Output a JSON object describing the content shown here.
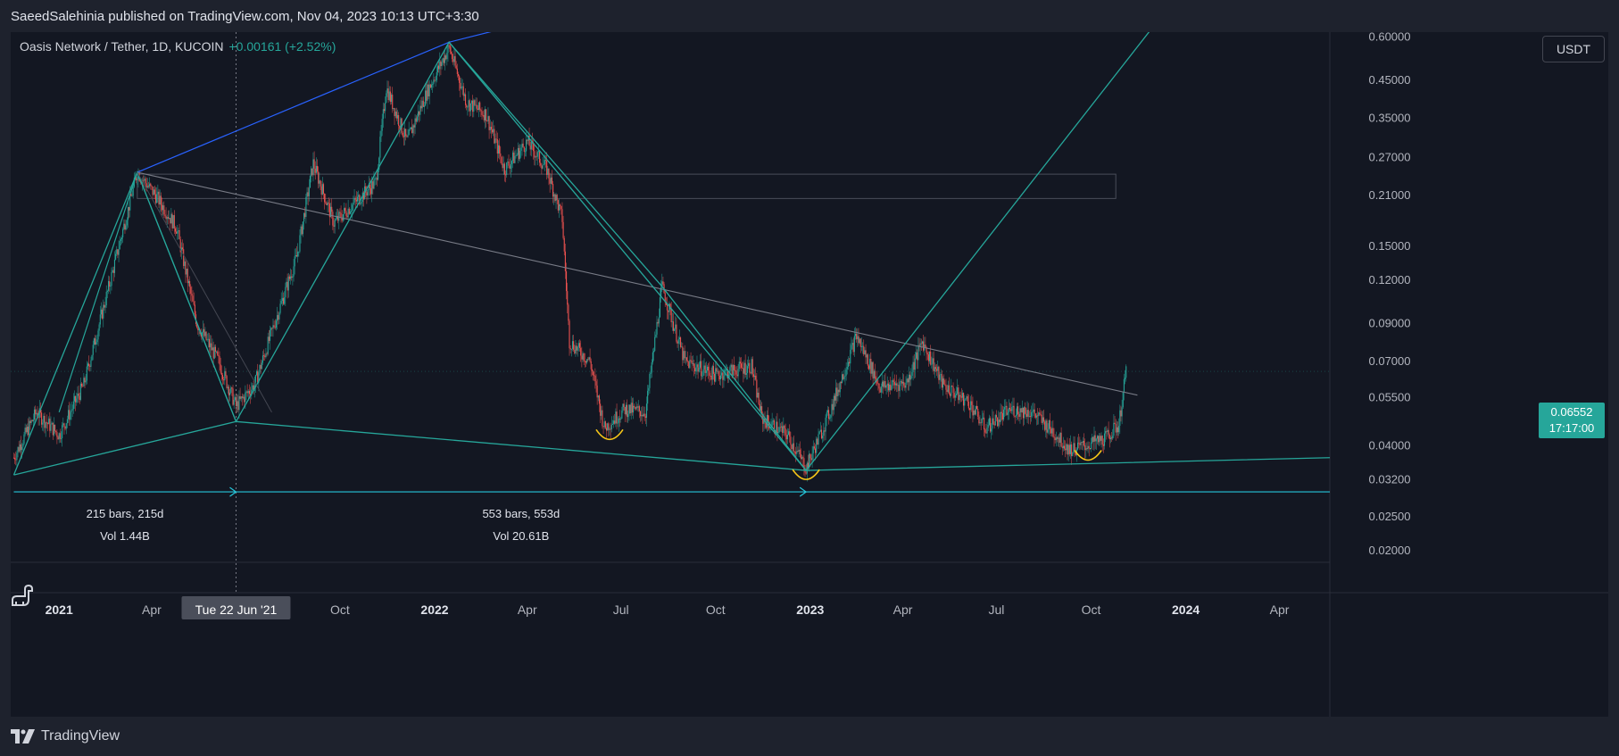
{
  "publisher": {
    "text": "SaeedSalehinia published on TradingView.com, Nov 04, 2023 10:13 UTC+3:30"
  },
  "legend": {
    "symbol": "Oasis Network / Tether, 1D, KUCOIN",
    "change": "+0.00161 (+2.52%)"
  },
  "currency_button": {
    "label": "USDT"
  },
  "last_price": {
    "value": "0.06552",
    "countdown": "17:17:00"
  },
  "brand": {
    "name": "TradingView"
  },
  "colors": {
    "up": "#26a69a",
    "down": "#ef5350",
    "pattern": "#26a69a",
    "trend_up": "#2962ff",
    "trend_down": "#787b86",
    "smile": "#f5c518"
  },
  "chart_data": {
    "type": "candlestick",
    "title": "Oasis Network / Tether, 1D, KUCOIN",
    "y_scale": "log",
    "ylim": [
      0.0185,
      0.62
    ],
    "x_range": [
      "2020-11-15",
      "2024-05-20"
    ],
    "y_ticks": [
      "0.60000",
      "0.45000",
      "0.35000",
      "0.27000",
      "0.21000",
      "0.15000",
      "0.12000",
      "0.09000",
      "0.07000",
      "0.05500",
      "0.04000",
      "0.03200",
      "0.02500",
      "0.02000"
    ],
    "x_ticks": [
      {
        "label": "2021",
        "date": "2021-01-01",
        "major": true
      },
      {
        "label": "Apr",
        "date": "2021-04-01",
        "major": false
      },
      {
        "label": "Oct",
        "date": "2021-10-01",
        "major": false
      },
      {
        "label": "2022",
        "date": "2022-01-01",
        "major": true
      },
      {
        "label": "Apr",
        "date": "2022-04-01",
        "major": false
      },
      {
        "label": "Jul",
        "date": "2022-07-01",
        "major": false
      },
      {
        "label": "Oct",
        "date": "2022-10-01",
        "major": false
      },
      {
        "label": "2023",
        "date": "2023-01-01",
        "major": true
      },
      {
        "label": "Apr",
        "date": "2023-04-01",
        "major": false
      },
      {
        "label": "Jul",
        "date": "2023-07-01",
        "major": false
      },
      {
        "label": "Oct",
        "date": "2023-10-01",
        "major": false
      },
      {
        "label": "2024",
        "date": "2024-01-01",
        "major": true
      },
      {
        "label": "Apr",
        "date": "2024-04-01",
        "major": false
      }
    ],
    "crosshair": {
      "date": "2021-06-22",
      "label": "Tue 22 Jun '21"
    },
    "price_path": [
      [
        "2020-11-18",
        0.037
      ],
      [
        "2020-12-10",
        0.05
      ],
      [
        "2021-01-01",
        0.043
      ],
      [
        "2021-01-25",
        0.06
      ],
      [
        "2021-02-20",
        0.12
      ],
      [
        "2021-03-18",
        0.245
      ],
      [
        "2021-04-05",
        0.21
      ],
      [
        "2021-04-25",
        0.17
      ],
      [
        "2021-05-15",
        0.09
      ],
      [
        "2021-06-05",
        0.07
      ],
      [
        "2021-06-22",
        0.052
      ],
      [
        "2021-07-10",
        0.06
      ],
      [
        "2021-08-01",
        0.095
      ],
      [
        "2021-08-20",
        0.14
      ],
      [
        "2021-09-05",
        0.26
      ],
      [
        "2021-09-25",
        0.175
      ],
      [
        "2021-10-15",
        0.2
      ],
      [
        "2021-11-05",
        0.23
      ],
      [
        "2021-11-15",
        0.43
      ],
      [
        "2021-12-05",
        0.3
      ],
      [
        "2021-12-25",
        0.42
      ],
      [
        "2022-01-15",
        0.56
      ],
      [
        "2022-02-01",
        0.39
      ],
      [
        "2022-02-20",
        0.36
      ],
      [
        "2022-03-10",
        0.25
      ],
      [
        "2022-04-01",
        0.3
      ],
      [
        "2022-04-20",
        0.25
      ],
      [
        "2022-05-05",
        0.18
      ],
      [
        "2022-05-12",
        0.08
      ],
      [
        "2022-06-01",
        0.07
      ],
      [
        "2022-06-15",
        0.045
      ],
      [
        "2022-07-05",
        0.051
      ],
      [
        "2022-07-25",
        0.05
      ],
      [
        "2022-08-10",
        0.115
      ],
      [
        "2022-09-01",
        0.07
      ],
      [
        "2022-10-01",
        0.064
      ],
      [
        "2022-11-05",
        0.068
      ],
      [
        "2022-11-15",
        0.048
      ],
      [
        "2022-12-10",
        0.043
      ],
      [
        "2022-12-28",
        0.0345
      ],
      [
        "2023-01-20",
        0.05
      ],
      [
        "2023-02-15",
        0.083
      ],
      [
        "2023-03-10",
        0.059
      ],
      [
        "2023-04-05",
        0.061
      ],
      [
        "2023-04-20",
        0.08
      ],
      [
        "2023-05-10",
        0.06
      ],
      [
        "2023-06-05",
        0.053
      ],
      [
        "2023-06-20",
        0.045
      ],
      [
        "2023-07-15",
        0.051
      ],
      [
        "2023-08-05",
        0.05
      ],
      [
        "2023-08-25",
        0.044
      ],
      [
        "2023-09-10",
        0.039
      ],
      [
        "2023-09-25",
        0.04
      ],
      [
        "2023-10-15",
        0.042
      ],
      [
        "2023-10-28",
        0.046
      ],
      [
        "2023-11-04",
        0.06552
      ]
    ],
    "annotations": {
      "zigzag": [
        [
          "2020-11-18",
          0.033
        ],
        [
          "2021-03-18",
          0.245
        ],
        [
          "2021-06-22",
          0.047
        ],
        [
          "2022-01-15",
          0.58
        ],
        [
          "2022-12-28",
          0.034
        ],
        [
          "2023-11-28",
          0.63
        ]
      ],
      "inner_zigzag": [
        [
          "2021-06-22",
          0.047
        ],
        [
          "2021-03-18",
          0.245
        ],
        [
          "2021-01-01",
          0.05
        ]
      ],
      "descending_line": [
        [
          "2022-01-15",
          0.58
        ],
        [
          "2022-08-10",
          0.115
        ],
        [
          "2022-12-28",
          0.034
        ]
      ],
      "upper_trend": [
        [
          "2021-03-18",
          0.245
        ],
        [
          "2022-01-15",
          0.58
        ],
        [
          "2022-05-05",
          0.7
        ]
      ],
      "lower_trend": [
        [
          "2020-11-18",
          0.033
        ],
        [
          "2021-06-22",
          0.047
        ],
        [
          "2022-12-28",
          0.034
        ],
        [
          "2024-05-20",
          0.037
        ]
      ],
      "resistance_line": [
        [
          "2021-03-18",
          0.245
        ],
        [
          "2023-11-15",
          0.056
        ]
      ],
      "rect_zone": {
        "from": "2021-03-18",
        "to": "2023-10-25",
        "top": 0.242,
        "bottom": 0.206
      },
      "smiles": [
        [
          "2022-06-20",
          0.043
        ],
        [
          "2022-12-28",
          0.033
        ],
        [
          "2023-09-28",
          0.0375
        ]
      ],
      "ranges": [
        {
          "from": "2020-11-18",
          "to": "2021-06-22",
          "bars": "215 bars, 215d",
          "vol": "Vol 1.44B"
        },
        {
          "from": "2021-06-22",
          "to": "2022-12-28",
          "bars": "553 bars, 553d",
          "vol": "Vol 20.61B"
        }
      ],
      "range_price": 0.0295
    },
    "last_price": 0.06552
  }
}
